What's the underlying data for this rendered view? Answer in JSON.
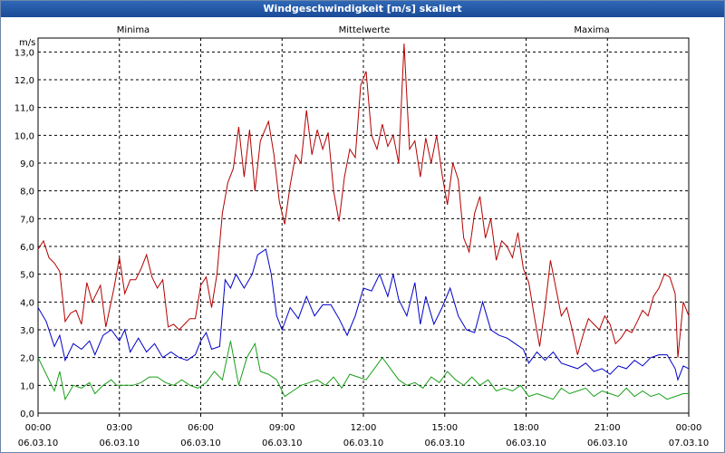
{
  "window": {
    "title": "Windgeschwindigkeit [m/s] skaliert"
  },
  "colors": {
    "min": "#19a019",
    "avg": "#0000c8",
    "max": "#b40000",
    "grid": "#000000",
    "title_bg": "#2453a0"
  },
  "chart_data": {
    "type": "line",
    "title": "Windgeschwindigkeit [m/s] skaliert",
    "ylabel": "m/s",
    "ylim": [
      0,
      13.5
    ],
    "yticks": [
      "0,0",
      "1,0",
      "2,0",
      "3,0",
      "4,0",
      "5,0",
      "6,0",
      "7,0",
      "8,0",
      "9,0",
      "10,0",
      "11,0",
      "12,0",
      "13,0"
    ],
    "xlim_hours": [
      0,
      24
    ],
    "xticks": [
      {
        "time": "00:00",
        "date": "06.03.10"
      },
      {
        "time": "03:00",
        "date": "06.03.10"
      },
      {
        "time": "06:00",
        "date": "06.03.10"
      },
      {
        "time": "09:00",
        "date": "06.03.10"
      },
      {
        "time": "12:00",
        "date": "06.03.10"
      },
      {
        "time": "15:00",
        "date": "06.03.10"
      },
      {
        "time": "18:00",
        "date": "06.03.10"
      },
      {
        "time": "21:00",
        "date": "06.03.10"
      },
      {
        "time": "00:00",
        "date": "07.03.10"
      }
    ],
    "series": [
      {
        "name": "Minima",
        "key": "min",
        "values": [
          [
            0,
            2.0
          ],
          [
            0.3,
            1.4
          ],
          [
            0.6,
            0.8
          ],
          [
            0.8,
            1.5
          ],
          [
            1.0,
            0.5
          ],
          [
            1.3,
            1.0
          ],
          [
            1.6,
            0.9
          ],
          [
            1.9,
            1.1
          ],
          [
            2.1,
            0.7
          ],
          [
            2.4,
            1.0
          ],
          [
            2.7,
            1.2
          ],
          [
            2.9,
            1.0
          ],
          [
            3.2,
            1.0
          ],
          [
            3.5,
            1.0
          ],
          [
            3.8,
            1.1
          ],
          [
            4.1,
            1.3
          ],
          [
            4.4,
            1.3
          ],
          [
            4.7,
            1.1
          ],
          [
            5.0,
            1.0
          ],
          [
            5.3,
            1.2
          ],
          [
            5.6,
            1.0
          ],
          [
            5.9,
            0.9
          ],
          [
            6.2,
            1.1
          ],
          [
            6.5,
            1.5
          ],
          [
            6.8,
            1.2
          ],
          [
            7.1,
            2.6
          ],
          [
            7.4,
            1.0
          ],
          [
            7.7,
            2.0
          ],
          [
            8.0,
            2.5
          ],
          [
            8.2,
            1.5
          ],
          [
            8.5,
            1.4
          ],
          [
            8.8,
            1.2
          ],
          [
            9.1,
            0.6
          ],
          [
            9.4,
            0.8
          ],
          [
            9.7,
            1.0
          ],
          [
            10.0,
            1.1
          ],
          [
            10.3,
            1.2
          ],
          [
            10.6,
            1.0
          ],
          [
            10.9,
            1.3
          ],
          [
            11.2,
            0.9
          ],
          [
            11.5,
            1.4
          ],
          [
            11.8,
            1.3
          ],
          [
            12.1,
            1.2
          ],
          [
            12.4,
            1.6
          ],
          [
            12.7,
            2.0
          ],
          [
            13.0,
            1.6
          ],
          [
            13.3,
            1.2
          ],
          [
            13.6,
            1.0
          ],
          [
            13.9,
            1.1
          ],
          [
            14.2,
            0.9
          ],
          [
            14.5,
            1.3
          ],
          [
            14.8,
            1.1
          ],
          [
            15.1,
            1.5
          ],
          [
            15.4,
            1.2
          ],
          [
            15.7,
            1.0
          ],
          [
            16.0,
            1.3
          ],
          [
            16.3,
            1.0
          ],
          [
            16.6,
            1.2
          ],
          [
            16.9,
            0.8
          ],
          [
            17.2,
            0.9
          ],
          [
            17.5,
            0.8
          ],
          [
            17.8,
            1.0
          ],
          [
            18.1,
            0.6
          ],
          [
            18.4,
            0.7
          ],
          [
            18.7,
            0.6
          ],
          [
            19.0,
            0.5
          ],
          [
            19.3,
            0.9
          ],
          [
            19.6,
            0.7
          ],
          [
            19.9,
            0.8
          ],
          [
            20.2,
            0.9
          ],
          [
            20.5,
            0.6
          ],
          [
            20.8,
            0.8
          ],
          [
            21.1,
            0.7
          ],
          [
            21.4,
            0.6
          ],
          [
            21.7,
            0.9
          ],
          [
            22.0,
            0.6
          ],
          [
            22.3,
            0.8
          ],
          [
            22.6,
            0.6
          ],
          [
            22.9,
            0.7
          ],
          [
            23.2,
            0.5
          ],
          [
            23.5,
            0.6
          ],
          [
            23.8,
            0.7
          ],
          [
            24.0,
            0.7
          ]
        ]
      },
      {
        "name": "Mittelwerte",
        "key": "avg",
        "values": [
          [
            0,
            3.8
          ],
          [
            0.3,
            3.3
          ],
          [
            0.6,
            2.4
          ],
          [
            0.8,
            2.8
          ],
          [
            1.0,
            1.9
          ],
          [
            1.3,
            2.5
          ],
          [
            1.6,
            2.3
          ],
          [
            1.9,
            2.6
          ],
          [
            2.1,
            2.1
          ],
          [
            2.4,
            2.8
          ],
          [
            2.7,
            3.0
          ],
          [
            3.0,
            2.6
          ],
          [
            3.2,
            3.0
          ],
          [
            3.4,
            2.2
          ],
          [
            3.7,
            2.7
          ],
          [
            4.0,
            2.2
          ],
          [
            4.3,
            2.5
          ],
          [
            4.6,
            2.0
          ],
          [
            4.9,
            2.2
          ],
          [
            5.2,
            2.0
          ],
          [
            5.5,
            1.9
          ],
          [
            5.8,
            2.1
          ],
          [
            6.0,
            2.6
          ],
          [
            6.2,
            2.9
          ],
          [
            6.4,
            2.3
          ],
          [
            6.7,
            2.4
          ],
          [
            6.9,
            4.8
          ],
          [
            7.1,
            4.5
          ],
          [
            7.3,
            5.0
          ],
          [
            7.6,
            4.5
          ],
          [
            7.9,
            5.0
          ],
          [
            8.1,
            5.7
          ],
          [
            8.4,
            5.9
          ],
          [
            8.6,
            5.0
          ],
          [
            8.8,
            3.5
          ],
          [
            9.0,
            3.0
          ],
          [
            9.3,
            3.8
          ],
          [
            9.6,
            3.4
          ],
          [
            9.9,
            4.2
          ],
          [
            10.2,
            3.5
          ],
          [
            10.5,
            3.9
          ],
          [
            10.8,
            3.9
          ],
          [
            11.1,
            3.4
          ],
          [
            11.4,
            2.8
          ],
          [
            11.7,
            3.5
          ],
          [
            12.0,
            4.5
          ],
          [
            12.3,
            4.4
          ],
          [
            12.6,
            5.0
          ],
          [
            12.9,
            4.2
          ],
          [
            13.1,
            5.0
          ],
          [
            13.3,
            4.1
          ],
          [
            13.6,
            3.5
          ],
          [
            13.9,
            4.7
          ],
          [
            14.1,
            3.2
          ],
          [
            14.3,
            4.2
          ],
          [
            14.6,
            3.2
          ],
          [
            14.9,
            3.8
          ],
          [
            15.2,
            4.5
          ],
          [
            15.5,
            3.5
          ],
          [
            15.8,
            3.0
          ],
          [
            16.1,
            2.9
          ],
          [
            16.4,
            4.0
          ],
          [
            16.7,
            3.0
          ],
          [
            17.0,
            2.8
          ],
          [
            17.3,
            2.7
          ],
          [
            17.6,
            2.5
          ],
          [
            17.9,
            2.3
          ],
          [
            18.1,
            1.8
          ],
          [
            18.4,
            2.2
          ],
          [
            18.7,
            1.9
          ],
          [
            19.0,
            2.2
          ],
          [
            19.3,
            1.8
          ],
          [
            19.6,
            1.7
          ],
          [
            19.9,
            1.6
          ],
          [
            20.2,
            1.8
          ],
          [
            20.5,
            1.5
          ],
          [
            20.8,
            1.6
          ],
          [
            21.1,
            1.4
          ],
          [
            21.4,
            1.7
          ],
          [
            21.7,
            1.6
          ],
          [
            22.0,
            1.9
          ],
          [
            22.3,
            1.7
          ],
          [
            22.6,
            2.0
          ],
          [
            22.9,
            2.1
          ],
          [
            23.2,
            2.1
          ],
          [
            23.5,
            1.6
          ],
          [
            23.6,
            1.2
          ],
          [
            23.8,
            1.7
          ],
          [
            24.0,
            1.6
          ]
        ]
      },
      {
        "name": "Maxima",
        "key": "max",
        "values": [
          [
            0,
            5.9
          ],
          [
            0.2,
            6.2
          ],
          [
            0.4,
            5.6
          ],
          [
            0.6,
            5.4
          ],
          [
            0.8,
            5.1
          ],
          [
            1.0,
            3.3
          ],
          [
            1.2,
            3.6
          ],
          [
            1.4,
            3.7
          ],
          [
            1.6,
            3.2
          ],
          [
            1.8,
            4.7
          ],
          [
            2.0,
            4.0
          ],
          [
            2.3,
            4.6
          ],
          [
            2.5,
            3.1
          ],
          [
            2.8,
            4.5
          ],
          [
            3.0,
            5.6
          ],
          [
            3.2,
            4.3
          ],
          [
            3.4,
            4.8
          ],
          [
            3.6,
            4.8
          ],
          [
            3.8,
            5.2
          ],
          [
            4.0,
            5.7
          ],
          [
            4.2,
            4.9
          ],
          [
            4.4,
            4.5
          ],
          [
            4.6,
            4.8
          ],
          [
            4.8,
            3.1
          ],
          [
            5.0,
            3.2
          ],
          [
            5.2,
            3.0
          ],
          [
            5.4,
            3.2
          ],
          [
            5.6,
            3.4
          ],
          [
            5.8,
            3.4
          ],
          [
            6.0,
            4.6
          ],
          [
            6.2,
            4.9
          ],
          [
            6.4,
            3.8
          ],
          [
            6.6,
            5.0
          ],
          [
            6.8,
            7.2
          ],
          [
            7.0,
            8.3
          ],
          [
            7.2,
            8.8
          ],
          [
            7.4,
            10.3
          ],
          [
            7.6,
            8.5
          ],
          [
            7.8,
            10.2
          ],
          [
            8.0,
            8.0
          ],
          [
            8.2,
            9.8
          ],
          [
            8.5,
            10.5
          ],
          [
            8.7,
            9.3
          ],
          [
            8.9,
            7.6
          ],
          [
            9.1,
            6.8
          ],
          [
            9.3,
            8.2
          ],
          [
            9.5,
            9.3
          ],
          [
            9.7,
            9.0
          ],
          [
            9.9,
            10.9
          ],
          [
            10.1,
            9.3
          ],
          [
            10.3,
            10.2
          ],
          [
            10.5,
            9.5
          ],
          [
            10.7,
            10.1
          ],
          [
            10.9,
            8.0
          ],
          [
            11.1,
            6.9
          ],
          [
            11.3,
            8.5
          ],
          [
            11.5,
            9.5
          ],
          [
            11.7,
            9.2
          ],
          [
            11.9,
            11.8
          ],
          [
            12.1,
            12.3
          ],
          [
            12.3,
            10.0
          ],
          [
            12.5,
            9.5
          ],
          [
            12.7,
            10.4
          ],
          [
            12.9,
            9.6
          ],
          [
            13.1,
            10.0
          ],
          [
            13.3,
            9.0
          ],
          [
            13.5,
            13.3
          ],
          [
            13.7,
            9.5
          ],
          [
            13.9,
            9.8
          ],
          [
            14.1,
            8.5
          ],
          [
            14.3,
            9.9
          ],
          [
            14.5,
            9.0
          ],
          [
            14.7,
            10.0
          ],
          [
            14.9,
            8.6
          ],
          [
            15.1,
            7.5
          ],
          [
            15.3,
            9.0
          ],
          [
            15.5,
            8.4
          ],
          [
            15.7,
            6.3
          ],
          [
            15.9,
            5.8
          ],
          [
            16.1,
            7.2
          ],
          [
            16.3,
            7.8
          ],
          [
            16.5,
            6.3
          ],
          [
            16.7,
            7.0
          ],
          [
            16.9,
            5.5
          ],
          [
            17.1,
            6.2
          ],
          [
            17.3,
            6.0
          ],
          [
            17.5,
            5.6
          ],
          [
            17.7,
            6.5
          ],
          [
            17.9,
            5.2
          ],
          [
            18.1,
            4.7
          ],
          [
            18.3,
            3.5
          ],
          [
            18.5,
            2.4
          ],
          [
            18.7,
            3.8
          ],
          [
            18.9,
            5.5
          ],
          [
            19.1,
            4.5
          ],
          [
            19.3,
            3.5
          ],
          [
            19.5,
            3.8
          ],
          [
            19.7,
            3.0
          ],
          [
            19.9,
            2.1
          ],
          [
            20.1,
            2.8
          ],
          [
            20.3,
            3.4
          ],
          [
            20.5,
            3.2
          ],
          [
            20.7,
            3.0
          ],
          [
            20.9,
            3.5
          ],
          [
            21.1,
            3.2
          ],
          [
            21.3,
            2.5
          ],
          [
            21.5,
            2.7
          ],
          [
            21.7,
            3.0
          ],
          [
            21.9,
            2.9
          ],
          [
            22.1,
            3.3
          ],
          [
            22.3,
            3.7
          ],
          [
            22.5,
            3.5
          ],
          [
            22.7,
            4.2
          ],
          [
            22.9,
            4.5
          ],
          [
            23.1,
            5.0
          ],
          [
            23.3,
            4.9
          ],
          [
            23.5,
            4.3
          ],
          [
            23.6,
            2.0
          ],
          [
            23.8,
            4.0
          ],
          [
            24.0,
            3.5
          ]
        ]
      }
    ]
  }
}
